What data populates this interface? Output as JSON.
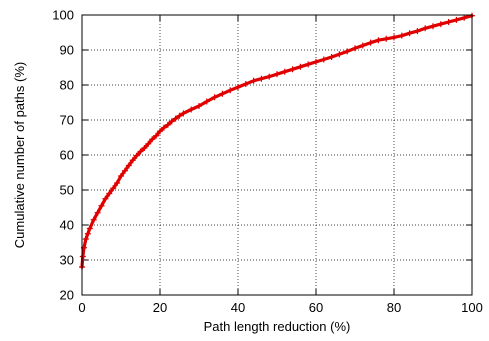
{
  "chart_data": {
    "type": "line",
    "title": "",
    "xlabel": "Path length reduction (%)",
    "ylabel": "Cumulative number of paths (%)",
    "xlim": [
      0,
      100
    ],
    "ylim": [
      20,
      100
    ],
    "xticks": [
      0,
      20,
      40,
      60,
      80,
      100
    ],
    "yticks": [
      20,
      30,
      40,
      50,
      60,
      70,
      80,
      90,
      100
    ],
    "grid": true,
    "legend": "none",
    "series": [
      {
        "color": "#e00000",
        "marker": "plus",
        "x": [
          0,
          0.2,
          0.5,
          1,
          1.5,
          2,
          3,
          4,
          5,
          6,
          7,
          8,
          9,
          10,
          11,
          12,
          13,
          14,
          15,
          16,
          17,
          18,
          19,
          20,
          21,
          22,
          23,
          24,
          25,
          26,
          28,
          30,
          32,
          34,
          36,
          38,
          40,
          42,
          44,
          46,
          48,
          50,
          52,
          54,
          56,
          58,
          60,
          62,
          64,
          66,
          68,
          70,
          72,
          74,
          76,
          78,
          80,
          82,
          84,
          86,
          88,
          90,
          92,
          94,
          96,
          98,
          100
        ],
        "y": [
          28,
          31,
          33.5,
          36,
          37.5,
          39,
          41.5,
          43.5,
          45.5,
          47.5,
          49,
          50.5,
          52,
          54,
          55.5,
          57,
          58.5,
          59.8,
          61,
          62,
          63.2,
          64.5,
          65.5,
          66.8,
          67.8,
          68.6,
          69.6,
          70.4,
          71.2,
          71.9,
          73,
          74,
          75.3,
          76.5,
          77.5,
          78.5,
          79.4,
          80.3,
          81.2,
          81.8,
          82.4,
          83.1,
          83.8,
          84.5,
          85.2,
          85.9,
          86.6,
          87.3,
          88,
          88.8,
          89.6,
          90.5,
          91.3,
          92.1,
          92.8,
          93.2,
          93.6,
          94.1,
          94.8,
          95.4,
          96.2,
          96.8,
          97.4,
          98,
          98.6,
          99.2,
          99.8
        ]
      }
    ]
  }
}
